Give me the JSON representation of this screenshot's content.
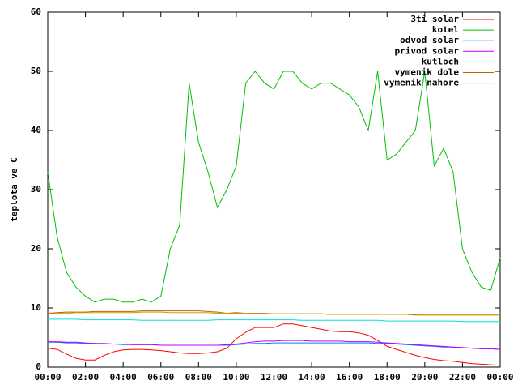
{
  "chart_data": {
    "type": "line",
    "y_label": "teplota ve C",
    "x": [
      0,
      0.5,
      1,
      1.5,
      2,
      2.5,
      3,
      3.5,
      4,
      4.5,
      5,
      5.5,
      6,
      6.5,
      7,
      7.5,
      8,
      8.5,
      9,
      9.5,
      10,
      10.5,
      11,
      11.5,
      12,
      12.5,
      13,
      13.5,
      14,
      14.5,
      15,
      15.5,
      16,
      16.5,
      17,
      17.5,
      18,
      18.5,
      19,
      19.5,
      20,
      20.5,
      21,
      21.5,
      22,
      22.5,
      23,
      23.5,
      24
    ],
    "xlim": [
      0,
      24
    ],
    "xticks": [
      {
        "value": 0,
        "label": "00:00"
      },
      {
        "value": 2,
        "label": "02:00"
      },
      {
        "value": 4,
        "label": "04:00"
      },
      {
        "value": 6,
        "label": "06:00"
      },
      {
        "value": 8,
        "label": "08:00"
      },
      {
        "value": 10,
        "label": "10:00"
      },
      {
        "value": 12,
        "label": "12:00"
      },
      {
        "value": 14,
        "label": "14:00"
      },
      {
        "value": 16,
        "label": "16:00"
      },
      {
        "value": 18,
        "label": "18:00"
      },
      {
        "value": 20,
        "label": "20:00"
      },
      {
        "value": 22,
        "label": "22:00"
      },
      {
        "value": 24,
        "label": "00:00"
      }
    ],
    "ylim": [
      0,
      60
    ],
    "yticks": [
      0,
      10,
      20,
      30,
      40,
      50,
      60
    ],
    "legend": "top-right",
    "series": [
      {
        "name": "3ti solar",
        "color": "#ff0000",
        "values": [
          3.2,
          3,
          2.2,
          1.5,
          1.2,
          1.2,
          2,
          2.6,
          2.9,
          3,
          3,
          2.9,
          2.8,
          2.6,
          2.4,
          2.3,
          2.3,
          2.4,
          2.6,
          3.2,
          4.8,
          5.9,
          6.7,
          6.7,
          6.7,
          7.3,
          7.3,
          7,
          6.7,
          6.4,
          6.1,
          6,
          6,
          5.8,
          5.4,
          4.5,
          3.5,
          3,
          2.5,
          2,
          1.6,
          1.3,
          1.1,
          1,
          0.8,
          0.6,
          0.5,
          0.4,
          0.3
        ]
      },
      {
        "name": "kotel",
        "color": "#00c000",
        "values": [
          33,
          22,
          16,
          13.5,
          12,
          11,
          11.5,
          11.5,
          11,
          11,
          11.5,
          11,
          12,
          20,
          24,
          48,
          38,
          33,
          27,
          30,
          34,
          48,
          50,
          48,
          47,
          50,
          50,
          48,
          47,
          48,
          48,
          47,
          46,
          44,
          40,
          50,
          35,
          36,
          38,
          40,
          50,
          34,
          37,
          33,
          20,
          16,
          13.5,
          13,
          18.5
        ]
      },
      {
        "name": "odvod solar",
        "color": "#0080ff",
        "values": [
          4.2,
          4.2,
          4.1,
          4.1,
          4,
          4,
          3.9,
          3.9,
          3.8,
          3.8,
          3.8,
          3.8,
          3.7,
          3.7,
          3.7,
          3.7,
          3.7,
          3.7,
          3.7,
          3.7,
          3.8,
          3.9,
          4,
          4,
          4.1,
          4.1,
          4.1,
          4.1,
          4.1,
          4.1,
          4.1,
          4.1,
          4.1,
          4.1,
          4.1,
          4,
          4,
          3.9,
          3.8,
          3.7,
          3.6,
          3.5,
          3.4,
          3.4,
          3.3,
          3.2,
          3.1,
          3.1,
          3
        ]
      },
      {
        "name": "privod solar",
        "color": "#c000ff",
        "values": [
          4.3,
          4.3,
          4.2,
          4.2,
          4.1,
          4,
          4,
          3.9,
          3.9,
          3.8,
          3.8,
          3.8,
          3.7,
          3.7,
          3.7,
          3.7,
          3.7,
          3.7,
          3.7,
          3.8,
          3.9,
          4.1,
          4.3,
          4.4,
          4.4,
          4.5,
          4.5,
          4.5,
          4.4,
          4.4,
          4.4,
          4.4,
          4.3,
          4.3,
          4.3,
          4.2,
          4.1,
          4,
          3.9,
          3.8,
          3.7,
          3.6,
          3.5,
          3.4,
          3.3,
          3.2,
          3.1,
          3.1,
          3
        ]
      },
      {
        "name": "kutloch",
        "color": "#00e0e0",
        "values": [
          8.1,
          8.1,
          8.1,
          8.1,
          8,
          8,
          8,
          8,
          8,
          8,
          7.9,
          7.9,
          7.9,
          7.9,
          7.9,
          7.9,
          7.9,
          7.9,
          8,
          8,
          8,
          8,
          8,
          8,
          8,
          8,
          8,
          7.9,
          7.9,
          7.9,
          7.9,
          7.9,
          7.9,
          7.9,
          7.9,
          7.9,
          7.8,
          7.8,
          7.8,
          7.8,
          7.8,
          7.8,
          7.8,
          7.8,
          7.7,
          7.7,
          7.7,
          7.7,
          7.7
        ]
      },
      {
        "name": "vymenik dole",
        "color": "#c06000",
        "values": [
          9.1,
          9.2,
          9.3,
          9.3,
          9.3,
          9.4,
          9.4,
          9.4,
          9.4,
          9.4,
          9.5,
          9.5,
          9.5,
          9.5,
          9.5,
          9.5,
          9.5,
          9.4,
          9.3,
          9.1,
          9.2,
          9.1,
          9.1,
          9.1,
          9,
          9,
          9,
          9,
          9,
          9,
          8.9,
          8.9,
          8.9,
          8.9,
          8.9,
          8.9,
          8.9,
          8.9,
          8.9,
          8.8,
          8.8,
          8.8,
          8.8,
          8.8,
          8.8,
          8.8,
          8.8,
          8.8,
          8.8
        ]
      },
      {
        "name": "vymenik nahore",
        "color": "#c8a000",
        "values": [
          9,
          9.1,
          9.1,
          9.2,
          9.2,
          9.2,
          9.2,
          9.2,
          9.2,
          9.2,
          9.3,
          9.3,
          9.3,
          9.2,
          9.2,
          9.2,
          9.2,
          9.2,
          9.1,
          9.1,
          9.1,
          9.1,
          9,
          9,
          9,
          9,
          9,
          9,
          9,
          9,
          8.9,
          8.9,
          8.9,
          8.9,
          8.9,
          8.9,
          8.9,
          8.9,
          8.9,
          8.9,
          8.8,
          8.8,
          8.8,
          8.8,
          8.8,
          8.8,
          8.8,
          8.8,
          8.8
        ]
      }
    ]
  }
}
